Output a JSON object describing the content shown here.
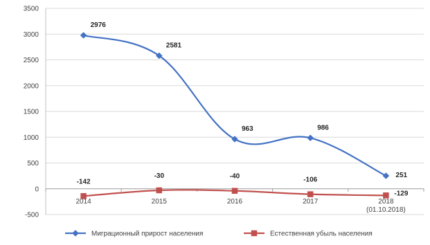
{
  "chart_data": {
    "type": "line",
    "categories": [
      "2014",
      "2015",
      "2016",
      "2017",
      "2018 (01.10.2018)"
    ],
    "x_ticks": [
      {
        "lines": [
          "2014"
        ]
      },
      {
        "lines": [
          "2015"
        ]
      },
      {
        "lines": [
          "2016"
        ]
      },
      {
        "lines": [
          "2017"
        ]
      },
      {
        "lines": [
          "2018",
          "(01.10.2018)"
        ]
      }
    ],
    "ylim": [
      -500,
      3500
    ],
    "yticks": [
      -500,
      0,
      500,
      1000,
      1500,
      2000,
      2500,
      3000,
      3500
    ],
    "grid": true,
    "legend_position": "bottom",
    "series": [
      {
        "name": "Миграционный прирост населения",
        "values": [
          2976,
          2581,
          963,
          986,
          251
        ],
        "labels": [
          "2976",
          "2581",
          "963",
          "986",
          "251"
        ],
        "label_position": "right-above",
        "color": "#4472c4",
        "marker": "diamond",
        "smooth": true
      },
      {
        "name": "Естественная убыль населения",
        "values": [
          -142,
          -30,
          -40,
          -106,
          -129
        ],
        "labels": [
          "-142",
          "-30",
          "-40",
          "-106",
          "-129"
        ],
        "label_position": "above",
        "color": "#c0504d",
        "marker": "square",
        "smooth": true
      }
    ]
  }
}
